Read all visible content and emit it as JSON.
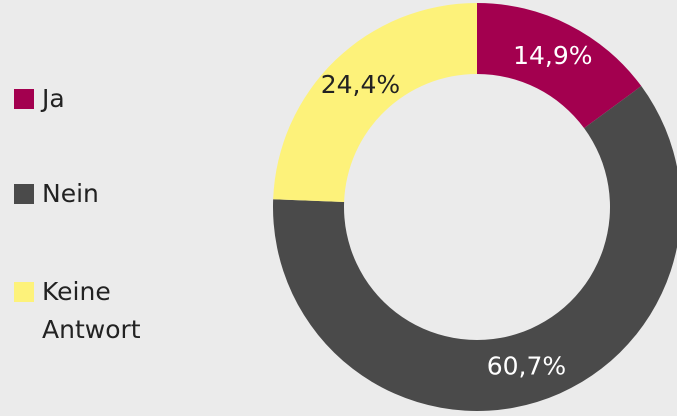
{
  "chart_data": {
    "type": "donut",
    "categories": [
      "Ja",
      "Nein",
      "Keine Antwort"
    ],
    "values": [
      14.9,
      60.7,
      24.4
    ],
    "value_labels": [
      "14,9%",
      "60,7%",
      "24,4%"
    ],
    "colors": [
      "#a3004f",
      "#4a4a4a",
      "#fdf27a"
    ],
    "legend": "left"
  }
}
